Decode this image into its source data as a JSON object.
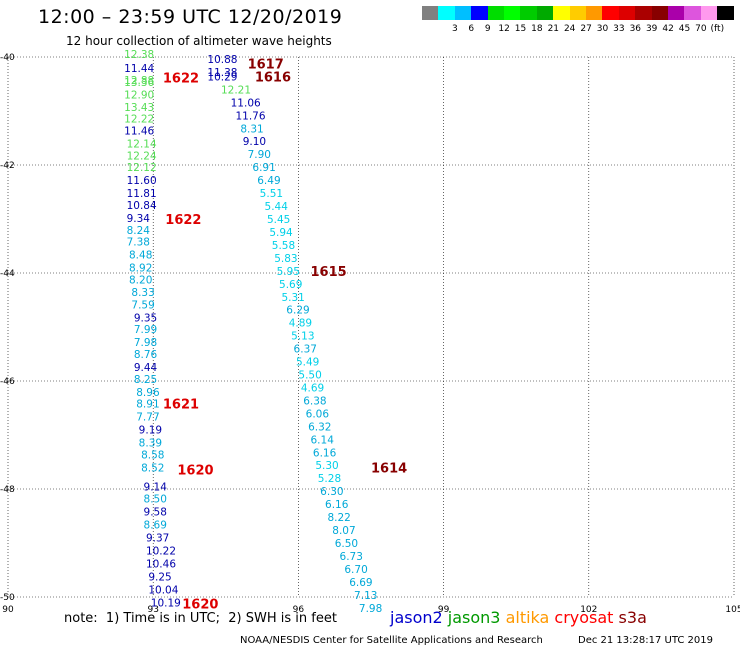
{
  "title": "12:00 – 23:59 UTC 12/20/2019",
  "subtitle": "12 hour collection of altimeter wave heights",
  "colorbar": {
    "colors": [
      "#808080",
      "#00ffff",
      "#00bfff",
      "#0000ff",
      "#00dd00",
      "#00ff00",
      "#00cc00",
      "#00aa00",
      "#ffff00",
      "#ffcc00",
      "#ff9900",
      "#ff0000",
      "#dd0000",
      "#aa0000",
      "#880000",
      "#aa00aa",
      "#dd55dd",
      "#ff99ee",
      "#000000"
    ],
    "labels": [
      "",
      "3",
      "6",
      "9",
      "12",
      "15",
      "18",
      "21",
      "24",
      "27",
      "30",
      "33",
      "36",
      "39",
      "42",
      "45",
      "70",
      "(ft)",
      ""
    ]
  },
  "note": "note:  1) Time is in UTC;  2) SWH is in feet",
  "satellites": [
    {
      "name": "jason2",
      "color": "#0000cc"
    },
    {
      "name": "jason3",
      "color": "#009900"
    },
    {
      "name": "altika",
      "color": "#ff9900"
    },
    {
      "name": "cryosat",
      "color": "#ff0000"
    },
    {
      "name": "s3a",
      "color": "#880000"
    }
  ],
  "credit": "NOAA/NESDIS Center for Satellite Applications and Research",
  "timestamp": "Dec 21 13:28:17 UTC 2019",
  "chart_data": {
    "type": "scatter",
    "xlim": [
      90,
      105
    ],
    "ylim": [
      -50,
      -40
    ],
    "x_ticks": [
      "90",
      "93",
      "96",
      "99",
      "102",
      "105"
    ],
    "y_ticks": [
      "-40",
      "-42",
      "-44",
      "-46",
      "-48",
      "-50"
    ],
    "grid": true,
    "series": [
      {
        "points": [
          {
            "x": 92.4,
            "y": -39.94,
            "v": "12.38",
            "c": "#55dd55"
          },
          {
            "x": 92.4,
            "y": -40.2,
            "v": "11.44",
            "c": "#0000aa"
          },
          {
            "x": 92.4,
            "y": -40.43,
            "v": "12.88",
            "c": "#55dd55"
          },
          {
            "x": 92.4,
            "y": -40.46,
            "v": "13.36",
            "c": "#55dd55"
          },
          {
            "x": 92.4,
            "y": -40.69,
            "v": "12.90",
            "c": "#55dd55"
          },
          {
            "x": 92.4,
            "y": -40.93,
            "v": "13.43",
            "c": "#55dd55"
          },
          {
            "x": 92.4,
            "y": -41.14,
            "v": "12.22",
            "c": "#55dd55"
          },
          {
            "x": 92.4,
            "y": -41.36,
            "v": "11.46",
            "c": "#0000aa"
          },
          {
            "x": 92.45,
            "y": -41.6,
            "v": "12.14",
            "c": "#55dd55"
          },
          {
            "x": 92.45,
            "y": -41.82,
            "v": "12.24",
            "c": "#55dd55"
          },
          {
            "x": 92.45,
            "y": -42.04,
            "v": "12.12",
            "c": "#55dd55"
          },
          {
            "x": 92.45,
            "y": -42.28,
            "v": "11.60",
            "c": "#0000aa"
          },
          {
            "x": 92.45,
            "y": -42.52,
            "v": "11.81",
            "c": "#0000aa"
          },
          {
            "x": 92.45,
            "y": -42.74,
            "v": "10.84",
            "c": "#0000aa"
          },
          {
            "x": 92.45,
            "y": -42.98,
            "v": "9.34",
            "c": "#0000aa"
          },
          {
            "x": 92.45,
            "y": -43.2,
            "v": "8.24",
            "c": "#00a8d8"
          },
          {
            "x": 92.45,
            "y": -43.42,
            "v": "7.38",
            "c": "#00a8d8"
          },
          {
            "x": 92.5,
            "y": -43.66,
            "v": "8.48",
            "c": "#00a8d8"
          },
          {
            "x": 92.5,
            "y": -43.9,
            "v": "8.92",
            "c": "#00a8d8"
          },
          {
            "x": 92.5,
            "y": -44.12,
            "v": "8.20",
            "c": "#00a8d8"
          },
          {
            "x": 92.55,
            "y": -44.35,
            "v": "8.33",
            "c": "#00a8d8"
          },
          {
            "x": 92.55,
            "y": -44.58,
            "v": "7.59",
            "c": "#00a8d8"
          },
          {
            "x": 92.6,
            "y": -44.82,
            "v": "9.35",
            "c": "#0000aa"
          },
          {
            "x": 92.6,
            "y": -45.04,
            "v": "7.99",
            "c": "#00a8d8"
          },
          {
            "x": 92.6,
            "y": -45.28,
            "v": "7.98",
            "c": "#00a8d8"
          },
          {
            "x": 92.6,
            "y": -45.5,
            "v": "8.76",
            "c": "#00a8d8"
          },
          {
            "x": 92.6,
            "y": -45.74,
            "v": "9.44",
            "c": "#0000aa"
          },
          {
            "x": 92.6,
            "y": -45.96,
            "v": "8.25",
            "c": "#00a8d8"
          },
          {
            "x": 92.65,
            "y": -46.2,
            "v": "8.96",
            "c": "#00a8d8"
          },
          {
            "x": 92.65,
            "y": -46.42,
            "v": "8.91",
            "c": "#00a8d8"
          },
          {
            "x": 92.65,
            "y": -46.66,
            "v": "7.77",
            "c": "#00a8d8"
          },
          {
            "x": 92.7,
            "y": -46.9,
            "v": "9.19",
            "c": "#0000aa"
          },
          {
            "x": 92.7,
            "y": -47.14,
            "v": "8.39",
            "c": "#00a8d8"
          },
          {
            "x": 92.75,
            "y": -47.36,
            "v": "8.58",
            "c": "#00a8d8"
          },
          {
            "x": 92.75,
            "y": -47.6,
            "v": "8.52",
            "c": "#00a8d8"
          },
          {
            "x": 92.8,
            "y": -47.95,
            "v": "9.14",
            "c": "#0000aa"
          },
          {
            "x": 92.8,
            "y": -48.18,
            "v": "8.50",
            "c": "#00a8d8"
          },
          {
            "x": 92.8,
            "y": -48.42,
            "v": "9.58",
            "c": "#0000aa"
          },
          {
            "x": 92.8,
            "y": -48.66,
            "v": "8.69",
            "c": "#00a8d8"
          },
          {
            "x": 92.85,
            "y": -48.9,
            "v": "9.37",
            "c": "#0000aa"
          },
          {
            "x": 92.85,
            "y": -49.14,
            "v": "10.22",
            "c": "#0000aa"
          },
          {
            "x": 92.85,
            "y": -49.38,
            "v": "10.46",
            "c": "#0000aa"
          },
          {
            "x": 92.9,
            "y": -49.62,
            "v": "9.25",
            "c": "#0000aa"
          },
          {
            "x": 92.9,
            "y": -49.86,
            "v": "10.04",
            "c": "#0000aa"
          },
          {
            "x": 92.95,
            "y": -50.1,
            "v": "10.19",
            "c": "#0000aa"
          }
        ]
      },
      {
        "points": [
          {
            "x": 94.12,
            "y": -40.04,
            "v": "10.88",
            "c": "#0000aa"
          },
          {
            "x": 94.12,
            "y": -40.28,
            "v": "11.38",
            "c": "#0000aa"
          },
          {
            "x": 94.12,
            "y": -40.36,
            "v": "10.29",
            "c": "#0000aa"
          },
          {
            "x": 94.4,
            "y": -40.6,
            "v": "12.21",
            "c": "#55dd55"
          },
          {
            "x": 94.6,
            "y": -40.84,
            "v": "11.06",
            "c": "#0000aa"
          },
          {
            "x": 94.7,
            "y": -41.08,
            "v": "11.76",
            "c": "#0000aa"
          },
          {
            "x": 94.8,
            "y": -41.32,
            "v": "8.31",
            "c": "#00a8d8"
          },
          {
            "x": 94.85,
            "y": -41.56,
            "v": "9.10",
            "c": "#0000aa"
          },
          {
            "x": 94.95,
            "y": -41.8,
            "v": "7.90",
            "c": "#00a8d8"
          },
          {
            "x": 95.05,
            "y": -42.04,
            "v": "6.91",
            "c": "#00a8d8"
          },
          {
            "x": 95.15,
            "y": -42.28,
            "v": "6.49",
            "c": "#00a8d8"
          },
          {
            "x": 95.2,
            "y": -42.52,
            "v": "5.51",
            "c": "#00d0e8"
          },
          {
            "x": 95.3,
            "y": -42.76,
            "v": "5.44",
            "c": "#00d0e8"
          },
          {
            "x": 95.35,
            "y": -43.0,
            "v": "5.45",
            "c": "#00d0e8"
          },
          {
            "x": 95.4,
            "y": -43.24,
            "v": "5.94",
            "c": "#00d0e8"
          },
          {
            "x": 95.45,
            "y": -43.48,
            "v": "5.58",
            "c": "#00d0e8"
          },
          {
            "x": 95.5,
            "y": -43.72,
            "v": "5.83",
            "c": "#00d0e8"
          },
          {
            "x": 95.55,
            "y": -43.96,
            "v": "5.95",
            "c": "#00d0e8"
          },
          {
            "x": 95.6,
            "y": -44.2,
            "v": "5.69",
            "c": "#00d0e8"
          },
          {
            "x": 95.65,
            "y": -44.44,
            "v": "5.31",
            "c": "#00d0e8"
          },
          {
            "x": 95.75,
            "y": -44.68,
            "v": "6.29",
            "c": "#00a8d8"
          },
          {
            "x": 95.8,
            "y": -44.92,
            "v": "4.89",
            "c": "#00d0e8"
          },
          {
            "x": 95.85,
            "y": -45.16,
            "v": "5.13",
            "c": "#00d0e8"
          },
          {
            "x": 95.9,
            "y": -45.4,
            "v": "6.37",
            "c": "#00a8d8"
          },
          {
            "x": 95.95,
            "y": -45.64,
            "v": "5.49",
            "c": "#00d0e8"
          },
          {
            "x": 96.0,
            "y": -45.88,
            "v": "5.50",
            "c": "#00d0e8"
          },
          {
            "x": 96.05,
            "y": -46.12,
            "v": "4.69",
            "c": "#00d0e8"
          },
          {
            "x": 96.1,
            "y": -46.36,
            "v": "6.38",
            "c": "#00a8d8"
          },
          {
            "x": 96.15,
            "y": -46.6,
            "v": "6.06",
            "c": "#00a8d8"
          },
          {
            "x": 96.2,
            "y": -46.84,
            "v": "6.32",
            "c": "#00a8d8"
          },
          {
            "x": 96.25,
            "y": -47.08,
            "v": "6.14",
            "c": "#00a8d8"
          },
          {
            "x": 96.3,
            "y": -47.32,
            "v": "6.16",
            "c": "#00a8d8"
          },
          {
            "x": 96.35,
            "y": -47.56,
            "v": "5.30",
            "c": "#00d0e8"
          },
          {
            "x": 96.4,
            "y": -47.8,
            "v": "5.28",
            "c": "#00d0e8"
          },
          {
            "x": 96.45,
            "y": -48.04,
            "v": "6.30",
            "c": "#00a8d8"
          },
          {
            "x": 96.55,
            "y": -48.28,
            "v": "6.16",
            "c": "#00a8d8"
          },
          {
            "x": 96.6,
            "y": -48.52,
            "v": "8.22",
            "c": "#00a8d8"
          },
          {
            "x": 96.7,
            "y": -48.76,
            "v": "8.07",
            "c": "#00a8d8"
          },
          {
            "x": 96.75,
            "y": -49.0,
            "v": "6.50",
            "c": "#00a8d8"
          },
          {
            "x": 96.85,
            "y": -49.24,
            "v": "6.73",
            "c": "#00a8d8"
          },
          {
            "x": 96.95,
            "y": -49.48,
            "v": "6.70",
            "c": "#00a8d8"
          },
          {
            "x": 97.05,
            "y": -49.72,
            "v": "6.69",
            "c": "#00a8d8"
          },
          {
            "x": 97.15,
            "y": -49.96,
            "v": "7.13",
            "c": "#00a8d8"
          },
          {
            "x": 97.25,
            "y": -50.2,
            "v": "7.98",
            "c": "#00a8d8"
          }
        ]
      }
    ],
    "time_labels": [
      {
        "x": 93.2,
        "y": -40.38,
        "v": "1622",
        "c": "#dd0000"
      },
      {
        "x": 94.95,
        "y": -40.12,
        "v": "1617",
        "c": "#880000"
      },
      {
        "x": 95.1,
        "y": -40.36,
        "v": "1616",
        "c": "#880000"
      },
      {
        "x": 93.25,
        "y": -43.0,
        "v": "1622",
        "c": "#dd0000"
      },
      {
        "x": 96.25,
        "y": -43.96,
        "v": "1615",
        "c": "#880000"
      },
      {
        "x": 93.2,
        "y": -46.42,
        "v": "1621",
        "c": "#dd0000"
      },
      {
        "x": 97.5,
        "y": -47.6,
        "v": "1614",
        "c": "#880000"
      },
      {
        "x": 93.5,
        "y": -47.64,
        "v": "1620",
        "c": "#dd0000"
      },
      {
        "x": 93.6,
        "y": -50.12,
        "v": "1620",
        "c": "#dd0000"
      }
    ]
  }
}
